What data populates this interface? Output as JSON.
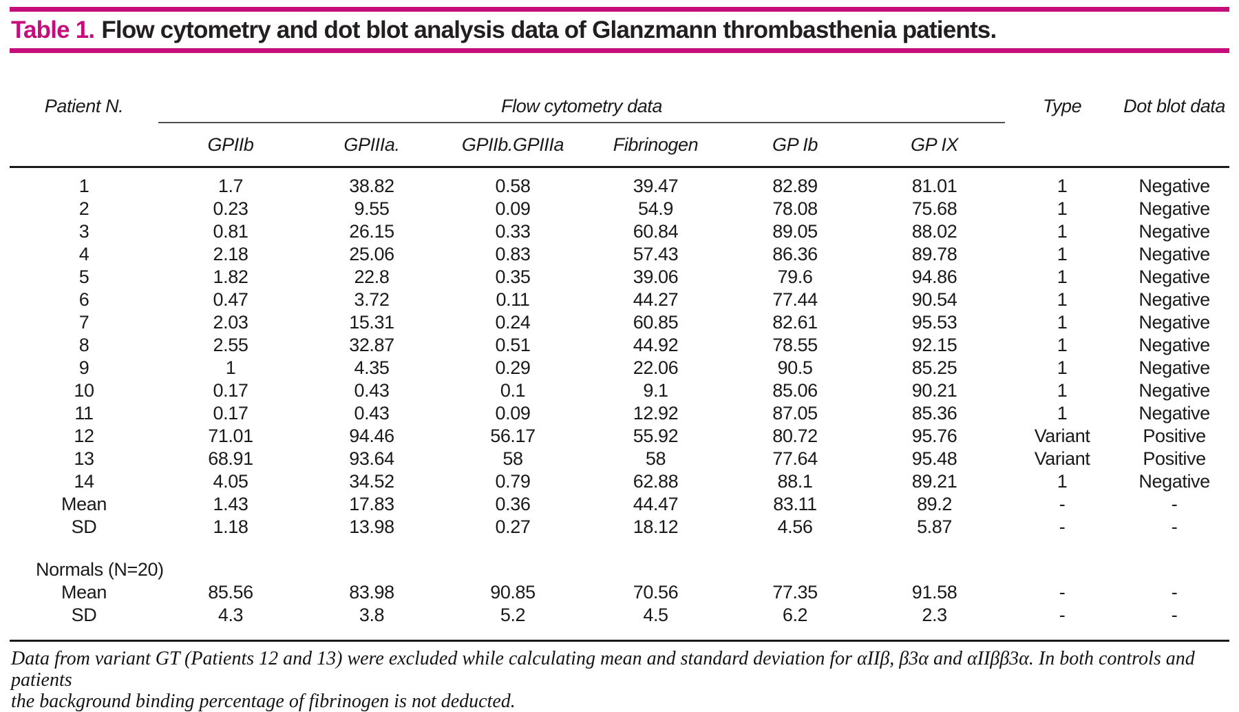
{
  "colors": {
    "accent": "#c60d7c",
    "rule_dark": "#1a1a1a",
    "rule_gray": "#4f4f4f"
  },
  "title": {
    "label": "Table 1.",
    "text": "Flow cytometry and dot blot analysis data of Glanzmann thrombasthenia patients."
  },
  "table": {
    "patient_header": "Patient N.",
    "spanner_header": "Flow cytometry data",
    "sub_headers": [
      "GPIIb",
      "GPIIIa.",
      "GPIIb.GPIIIa",
      "Fibrinogen",
      "GP Ib",
      "GP IX"
    ],
    "type_header": "Type",
    "dotblot_header": "Dot blot data",
    "rows": [
      [
        "1",
        "1.7",
        "38.82",
        "0.58",
        "39.47",
        "82.89",
        "81.01",
        "1",
        "Negative"
      ],
      [
        "2",
        "0.23",
        "9.55",
        "0.09",
        "54.9",
        "78.08",
        "75.68",
        "1",
        "Negative"
      ],
      [
        "3",
        "0.81",
        "26.15",
        "0.33",
        "60.84",
        "89.05",
        "88.02",
        "1",
        "Negative"
      ],
      [
        "4",
        "2.18",
        "25.06",
        "0.83",
        "57.43",
        "86.36",
        "89.78",
        "1",
        "Negative"
      ],
      [
        "5",
        "1.82",
        "22.8",
        "0.35",
        "39.06",
        "79.6",
        "94.86",
        "1",
        "Negative"
      ],
      [
        "6",
        "0.47",
        "3.72",
        "0.11",
        "44.27",
        "77.44",
        "90.54",
        "1",
        "Negative"
      ],
      [
        "7",
        "2.03",
        "15.31",
        "0.24",
        "60.85",
        "82.61",
        "95.53",
        "1",
        "Negative"
      ],
      [
        "8",
        "2.55",
        "32.87",
        "0.51",
        "44.92",
        "78.55",
        "92.15",
        "1",
        "Negative"
      ],
      [
        "9",
        "1",
        "4.35",
        "0.29",
        "22.06",
        "90.5",
        "85.25",
        "1",
        "Negative"
      ],
      [
        "10",
        "0.17",
        "0.43",
        "0.1",
        "9.1",
        "85.06",
        "90.21",
        "1",
        "Negative"
      ],
      [
        "11",
        "0.17",
        "0.43",
        "0.09",
        "12.92",
        "87.05",
        "85.36",
        "1",
        "Negative"
      ],
      [
        "12",
        "71.01",
        "94.46",
        "56.17",
        "55.92",
        "80.72",
        "95.76",
        "Variant",
        "Positive"
      ],
      [
        "13",
        "68.91",
        "93.64",
        "58",
        "58",
        "77.64",
        "95.48",
        "Variant",
        "Positive"
      ],
      [
        "14",
        "4.05",
        "34.52",
        "0.79",
        "62.88",
        "88.1",
        "89.21",
        "1",
        "Negative"
      ],
      [
        "Mean",
        "1.43",
        "17.83",
        "0.36",
        "44.47",
        "83.11",
        "89.2",
        "-",
        "-"
      ],
      [
        "SD",
        "1.18",
        "13.98",
        "0.27",
        "18.12",
        "4.56",
        "5.87",
        "-",
        "-"
      ]
    ],
    "normals_label": "Normals (N=20)",
    "normals_rows": [
      [
        "Mean",
        "85.56",
        "83.98",
        "90.85",
        "70.56",
        "77.35",
        "91.58",
        "-",
        "-"
      ],
      [
        "SD",
        "4.3",
        "3.8",
        "5.2",
        "4.5",
        "6.2",
        "2.3",
        "-",
        "-"
      ]
    ]
  },
  "footnote": {
    "lines": [
      "Data from variant GT (Patients 12 and 13) were excluded while calculating mean and standard deviation for αIIβ, β3α and αIIββ3α. In both controls and patients",
      "the background binding percentage of fibrinogen is not deducted."
    ]
  }
}
